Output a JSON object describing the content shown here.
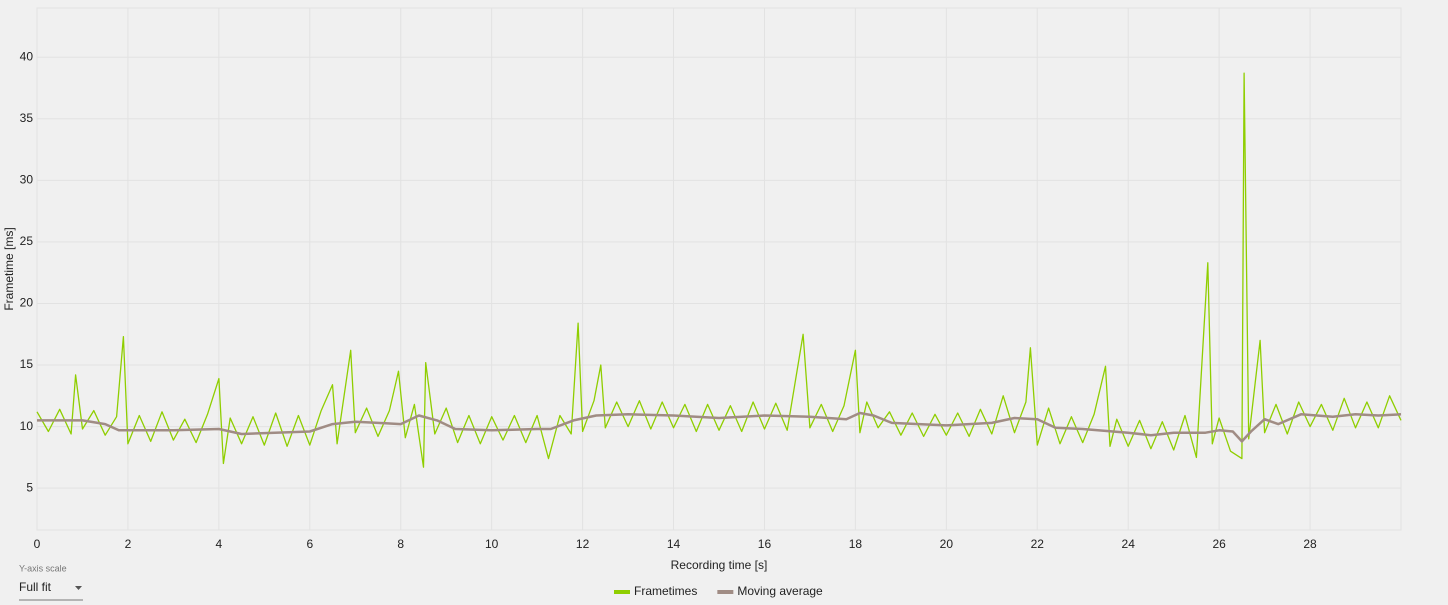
{
  "chart_data": {
    "type": "line",
    "x_label": "Recording time [s]",
    "y_label": "Frametime [ms]",
    "x": [
      0,
      0.25,
      0.5,
      0.75,
      0.85,
      1.0,
      1.25,
      1.5,
      1.75,
      1.9,
      2.0,
      2.25,
      2.5,
      2.75,
      3.0,
      3.25,
      3.5,
      3.75,
      4.0,
      4.1,
      4.25,
      4.5,
      4.75,
      5.0,
      5.25,
      5.5,
      5.75,
      6.0,
      6.25,
      6.5,
      6.6,
      6.9,
      7.0,
      7.25,
      7.5,
      7.75,
      7.95,
      8.1,
      8.3,
      8.5,
      8.55,
      8.75,
      9.0,
      9.25,
      9.5,
      9.75,
      10.0,
      10.25,
      10.5,
      10.75,
      11.0,
      11.25,
      11.5,
      11.75,
      11.9,
      12.0,
      12.25,
      12.4,
      12.5,
      12.75,
      13.0,
      13.25,
      13.5,
      13.75,
      14.0,
      14.25,
      14.5,
      14.75,
      15.0,
      15.25,
      15.5,
      15.75,
      16.0,
      16.25,
      16.5,
      16.85,
      17.0,
      17.25,
      17.5,
      17.75,
      18.0,
      18.1,
      18.25,
      18.5,
      18.75,
      19.0,
      19.25,
      19.5,
      19.75,
      20.0,
      20.25,
      20.5,
      20.75,
      21.0,
      21.25,
      21.5,
      21.75,
      21.85,
      22.0,
      22.25,
      22.5,
      22.75,
      23.0,
      23.25,
      23.5,
      23.6,
      23.75,
      24.0,
      24.25,
      24.5,
      24.75,
      25.0,
      25.25,
      25.5,
      25.75,
      25.85,
      26.0,
      26.25,
      26.5,
      26.55,
      26.65,
      26.9,
      27.0,
      27.25,
      27.5,
      27.75,
      28.0,
      28.25,
      28.5,
      28.75,
      29.0,
      29.25,
      29.5,
      29.75,
      30.0
    ],
    "series": [
      {
        "name": "Frametimes",
        "color": "#8fce00",
        "values": [
          11.2,
          9.6,
          11.4,
          9.4,
          14.2,
          9.8,
          11.3,
          9.3,
          10.8,
          17.3,
          8.6,
          10.9,
          8.8,
          11.2,
          8.9,
          10.6,
          8.7,
          11.0,
          13.9,
          7.0,
          10.7,
          8.6,
          10.8,
          8.5,
          11.1,
          8.4,
          10.9,
          8.5,
          11.3,
          13.4,
          8.6,
          16.2,
          9.5,
          11.5,
          9.2,
          11.3,
          14.5,
          9.1,
          11.8,
          6.7,
          15.2,
          9.4,
          11.5,
          8.7,
          10.9,
          8.6,
          10.8,
          8.9,
          10.9,
          8.7,
          10.9,
          7.4,
          10.9,
          9.4,
          18.4,
          9.6,
          12.1,
          15.0,
          9.9,
          12.0,
          10.0,
          12.1,
          9.8,
          12.0,
          9.9,
          11.8,
          9.6,
          11.8,
          9.7,
          11.7,
          9.6,
          12.0,
          9.8,
          11.9,
          9.7,
          17.5,
          9.9,
          11.8,
          9.6,
          11.7,
          16.2,
          9.5,
          12.0,
          9.9,
          11.2,
          9.3,
          11.1,
          9.2,
          11.0,
          9.3,
          11.1,
          9.2,
          11.4,
          9.4,
          12.5,
          9.5,
          12.0,
          16.4,
          8.5,
          11.5,
          8.6,
          10.8,
          8.7,
          11.0,
          14.9,
          8.4,
          10.6,
          8.4,
          10.5,
          8.2,
          10.4,
          8.1,
          10.9,
          7.5,
          23.3,
          8.6,
          10.7,
          8.0,
          7.4,
          38.7,
          9.0,
          17.0,
          9.5,
          11.8,
          9.4,
          12.0,
          10.0,
          11.8,
          9.7,
          12.3,
          9.9,
          12.0,
          9.9,
          12.5,
          10.5
        ]
      },
      {
        "name": "Moving average",
        "color": "#a08c84",
        "x": [
          0,
          1,
          1.5,
          1.8,
          3,
          4,
          4.5,
          6,
          6.5,
          7,
          7.5,
          8,
          8.4,
          8.8,
          9.2,
          10,
          11,
          11.3,
          11.8,
          12.3,
          13,
          14,
          15,
          16,
          17,
          17.8,
          18.1,
          18.4,
          18.8,
          20,
          21,
          21.5,
          22,
          22.4,
          23,
          24,
          24.5,
          25,
          25.7,
          26,
          26.3,
          26.5,
          26.7,
          27,
          27.3,
          27.8,
          28.5,
          29,
          29.5,
          30
        ],
        "values": [
          10.5,
          10.5,
          10.2,
          9.7,
          9.7,
          9.8,
          9.4,
          9.6,
          10.2,
          10.4,
          10.3,
          10.2,
          10.9,
          10.5,
          9.8,
          9.7,
          9.8,
          9.8,
          10.5,
          10.9,
          11.0,
          10.9,
          10.7,
          10.9,
          10.8,
          10.6,
          11.1,
          10.9,
          10.3,
          10.1,
          10.3,
          10.7,
          10.6,
          9.9,
          9.8,
          9.5,
          9.3,
          9.5,
          9.5,
          9.7,
          9.6,
          8.8,
          9.6,
          10.6,
          10.2,
          11.0,
          10.8,
          11.0,
          10.9,
          11.0
        ]
      }
    ],
    "xlim": [
      0,
      30
    ],
    "xticks": [
      0,
      2,
      4,
      6,
      8,
      10,
      12,
      14,
      16,
      18,
      20,
      22,
      24,
      26,
      28
    ],
    "ylim": [
      1.6,
      44
    ],
    "yticks": [
      5,
      10,
      15,
      20,
      25,
      30,
      35,
      40
    ],
    "grid": true,
    "legend": "bottom"
  },
  "controls": {
    "y_axis_scale_label": "Y-axis scale",
    "y_axis_scale_value": "Full fit"
  }
}
